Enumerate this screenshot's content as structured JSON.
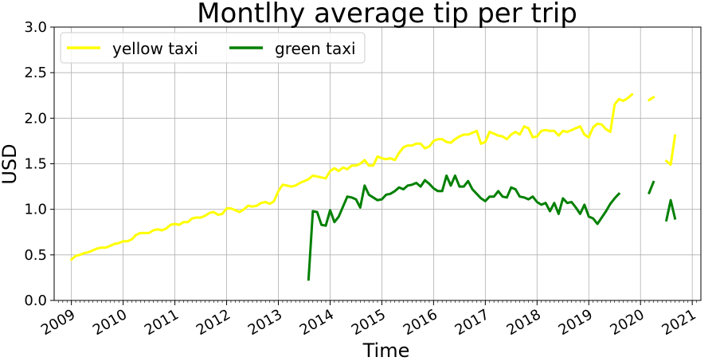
{
  "chart_data": {
    "type": "line",
    "title": "Montlhy average tip per trip",
    "xlabel": "Time",
    "ylabel": "USD",
    "ylim": [
      0.0,
      3.0
    ],
    "xlim": [
      "2008-09",
      "2021-03"
    ],
    "grid": true,
    "legend_position": "top-left",
    "y_ticks": [
      "0.0",
      "0.5",
      "1.0",
      "1.5",
      "2.0",
      "2.5",
      "3.0"
    ],
    "x_ticks": [
      "2009",
      "2010",
      "2011",
      "2012",
      "2013",
      "2014",
      "2015",
      "2016",
      "2017",
      "2018",
      "2019",
      "2020",
      "2021"
    ],
    "series": [
      {
        "name": "yellow taxi",
        "color": "#ffff00",
        "points": [
          [
            "2009-01",
            0.45
          ],
          [
            "2009-02",
            0.49
          ],
          [
            "2009-03",
            0.5
          ],
          [
            "2009-04",
            0.52
          ],
          [
            "2009-05",
            0.53
          ],
          [
            "2009-06",
            0.55
          ],
          [
            "2009-07",
            0.57
          ],
          [
            "2009-08",
            0.58
          ],
          [
            "2009-09",
            0.58
          ],
          [
            "2009-10",
            0.6
          ],
          [
            "2009-11",
            0.62
          ],
          [
            "2009-12",
            0.63
          ],
          [
            "2010-01",
            0.65
          ],
          [
            "2010-02",
            0.65
          ],
          [
            "2010-03",
            0.67
          ],
          [
            "2010-04",
            0.72
          ],
          [
            "2010-05",
            0.74
          ],
          [
            "2010-06",
            0.74
          ],
          [
            "2010-07",
            0.74
          ],
          [
            "2010-08",
            0.77
          ],
          [
            "2010-09",
            0.78
          ],
          [
            "2010-10",
            0.77
          ],
          [
            "2010-11",
            0.79
          ],
          [
            "2010-12",
            0.83
          ],
          [
            "2011-01",
            0.84
          ],
          [
            "2011-02",
            0.83
          ],
          [
            "2011-03",
            0.86
          ],
          [
            "2011-04",
            0.86
          ],
          [
            "2011-05",
            0.9
          ],
          [
            "2011-06",
            0.91
          ],
          [
            "2011-07",
            0.91
          ],
          [
            "2011-08",
            0.93
          ],
          [
            "2011-09",
            0.96
          ],
          [
            "2011-10",
            0.97
          ],
          [
            "2011-11",
            0.94
          ],
          [
            "2011-12",
            0.95
          ],
          [
            "2012-01",
            1.01
          ],
          [
            "2012-02",
            1.01
          ],
          [
            "2012-03",
            0.99
          ],
          [
            "2012-04",
            0.97
          ],
          [
            "2012-05",
            1.0
          ],
          [
            "2012-06",
            1.04
          ],
          [
            "2012-07",
            1.03
          ],
          [
            "2012-08",
            1.04
          ],
          [
            "2012-09",
            1.07
          ],
          [
            "2012-10",
            1.08
          ],
          [
            "2012-11",
            1.06
          ],
          [
            "2012-12",
            1.09
          ],
          [
            "2013-01",
            1.2
          ],
          [
            "2013-02",
            1.27
          ],
          [
            "2013-03",
            1.26
          ],
          [
            "2013-04",
            1.25
          ],
          [
            "2013-05",
            1.26
          ],
          [
            "2013-06",
            1.29
          ],
          [
            "2013-07",
            1.31
          ],
          [
            "2013-08",
            1.33
          ],
          [
            "2013-09",
            1.37
          ],
          [
            "2013-10",
            1.36
          ],
          [
            "2013-11",
            1.35
          ],
          [
            "2013-12",
            1.34
          ],
          [
            "2014-01",
            1.42
          ],
          [
            "2014-02",
            1.45
          ],
          [
            "2014-03",
            1.42
          ],
          [
            "2014-04",
            1.46
          ],
          [
            "2014-05",
            1.44
          ],
          [
            "2014-06",
            1.48
          ],
          [
            "2014-07",
            1.48
          ],
          [
            "2014-08",
            1.5
          ],
          [
            "2014-09",
            1.54
          ],
          [
            "2014-10",
            1.48
          ],
          [
            "2014-11",
            1.48
          ],
          [
            "2014-12",
            1.58
          ],
          [
            "2015-01",
            1.56
          ],
          [
            "2015-02",
            1.55
          ],
          [
            "2015-03",
            1.56
          ],
          [
            "2015-04",
            1.54
          ],
          [
            "2015-05",
            1.62
          ],
          [
            "2015-06",
            1.68
          ],
          [
            "2015-07",
            1.7
          ],
          [
            "2015-08",
            1.7
          ],
          [
            "2015-09",
            1.72
          ],
          [
            "2015-10",
            1.72
          ],
          [
            "2015-11",
            1.67
          ],
          [
            "2015-12",
            1.69
          ],
          [
            "2016-01",
            1.75
          ],
          [
            "2016-02",
            1.77
          ],
          [
            "2016-03",
            1.77
          ],
          [
            "2016-04",
            1.74
          ],
          [
            "2016-05",
            1.73
          ],
          [
            "2016-06",
            1.77
          ],
          [
            "2016-07",
            1.8
          ],
          [
            "2016-08",
            1.82
          ],
          [
            "2016-09",
            1.82
          ],
          [
            "2016-10",
            1.84
          ],
          [
            "2016-11",
            1.86
          ],
          [
            "2016-12",
            1.72
          ],
          [
            "2017-01",
            1.74
          ],
          [
            "2017-02",
            1.85
          ],
          [
            "2017-03",
            1.83
          ],
          [
            "2017-04",
            1.81
          ],
          [
            "2017-05",
            1.8
          ],
          [
            "2017-06",
            1.77
          ],
          [
            "2017-07",
            1.82
          ],
          [
            "2017-08",
            1.85
          ],
          [
            "2017-09",
            1.82
          ],
          [
            "2017-10",
            1.91
          ],
          [
            "2017-11",
            1.89
          ],
          [
            "2017-12",
            1.79
          ],
          [
            "2018-01",
            1.8
          ],
          [
            "2018-02",
            1.86
          ],
          [
            "2018-03",
            1.87
          ],
          [
            "2018-04",
            1.86
          ],
          [
            "2018-05",
            1.86
          ],
          [
            "2018-06",
            1.81
          ],
          [
            "2018-07",
            1.86
          ],
          [
            "2018-08",
            1.85
          ],
          [
            "2018-09",
            1.87
          ],
          [
            "2018-10",
            1.89
          ],
          [
            "2018-11",
            1.91
          ],
          [
            "2018-12",
            1.82
          ],
          [
            "2019-01",
            1.79
          ],
          [
            "2019-02",
            1.9
          ],
          [
            "2019-03",
            1.94
          ],
          [
            "2019-04",
            1.93
          ],
          [
            "2019-05",
            1.88
          ],
          [
            "2019-06",
            1.85
          ],
          [
            "2019-07",
            2.15
          ],
          [
            "2019-08",
            2.21
          ],
          [
            "2019-09",
            2.19
          ],
          [
            "2019-10",
            2.22
          ],
          [
            "2019-11",
            2.26
          ],
          null,
          [
            "2020-03",
            2.2
          ],
          [
            "2020-04",
            2.23
          ],
          null,
          [
            "2020-07",
            1.53
          ],
          [
            "2020-08",
            1.49
          ],
          [
            "2020-09",
            1.81
          ]
        ]
      },
      {
        "name": "green taxi",
        "color": "#008000",
        "points": [
          [
            "2013-08",
            0.23
          ],
          [
            "2013-09",
            0.98
          ],
          [
            "2013-10",
            0.97
          ],
          [
            "2013-11",
            0.83
          ],
          [
            "2013-12",
            0.82
          ],
          [
            "2014-01",
            0.99
          ],
          [
            "2014-02",
            0.86
          ],
          [
            "2014-03",
            0.92
          ],
          [
            "2014-04",
            1.03
          ],
          [
            "2014-05",
            1.14
          ],
          [
            "2014-06",
            1.13
          ],
          [
            "2014-07",
            1.11
          ],
          [
            "2014-08",
            1.02
          ],
          [
            "2014-09",
            1.26
          ],
          [
            "2014-10",
            1.16
          ],
          [
            "2014-11",
            1.13
          ],
          [
            "2014-12",
            1.1
          ],
          [
            "2015-01",
            1.11
          ],
          [
            "2015-02",
            1.16
          ],
          [
            "2015-03",
            1.17
          ],
          [
            "2015-04",
            1.2
          ],
          [
            "2015-05",
            1.24
          ],
          [
            "2015-06",
            1.22
          ],
          [
            "2015-07",
            1.26
          ],
          [
            "2015-08",
            1.27
          ],
          [
            "2015-09",
            1.29
          ],
          [
            "2015-10",
            1.25
          ],
          [
            "2015-11",
            1.32
          ],
          [
            "2015-12",
            1.28
          ],
          [
            "2016-01",
            1.23
          ],
          [
            "2016-02",
            1.2
          ],
          [
            "2016-03",
            1.2
          ],
          [
            "2016-04",
            1.37
          ],
          [
            "2016-05",
            1.26
          ],
          [
            "2016-06",
            1.37
          ],
          [
            "2016-07",
            1.25
          ],
          [
            "2016-08",
            1.25
          ],
          [
            "2016-09",
            1.31
          ],
          [
            "2016-10",
            1.22
          ],
          [
            "2016-11",
            1.17
          ],
          [
            "2016-12",
            1.12
          ],
          [
            "2017-01",
            1.09
          ],
          [
            "2017-02",
            1.14
          ],
          [
            "2017-03",
            1.14
          ],
          [
            "2017-04",
            1.2
          ],
          [
            "2017-05",
            1.14
          ],
          [
            "2017-06",
            1.13
          ],
          [
            "2017-07",
            1.24
          ],
          [
            "2017-08",
            1.22
          ],
          [
            "2017-09",
            1.14
          ],
          [
            "2017-10",
            1.13
          ],
          [
            "2017-11",
            1.11
          ],
          [
            "2017-12",
            1.14
          ],
          [
            "2018-01",
            1.08
          ],
          [
            "2018-02",
            1.05
          ],
          [
            "2018-03",
            1.07
          ],
          [
            "2018-04",
            0.98
          ],
          [
            "2018-05",
            1.07
          ],
          [
            "2018-06",
            0.95
          ],
          [
            "2018-07",
            1.12
          ],
          [
            "2018-08",
            1.07
          ],
          [
            "2018-09",
            1.08
          ],
          [
            "2018-10",
            1.02
          ],
          [
            "2018-11",
            0.95
          ],
          [
            "2018-12",
            1.05
          ],
          [
            "2019-01",
            0.92
          ],
          [
            "2019-02",
            0.9
          ],
          [
            "2019-03",
            0.84
          ],
          [
            "2019-04",
            0.91
          ],
          [
            "2019-05",
            0.98
          ],
          [
            "2019-06",
            1.06
          ],
          [
            "2019-07",
            1.12
          ],
          [
            "2019-08",
            1.17
          ],
          null,
          [
            "2020-03",
            1.18
          ],
          [
            "2020-04",
            1.3
          ],
          null,
          [
            "2020-07",
            0.88
          ],
          [
            "2020-08",
            1.1
          ],
          [
            "2020-09",
            0.9
          ]
        ]
      }
    ]
  }
}
